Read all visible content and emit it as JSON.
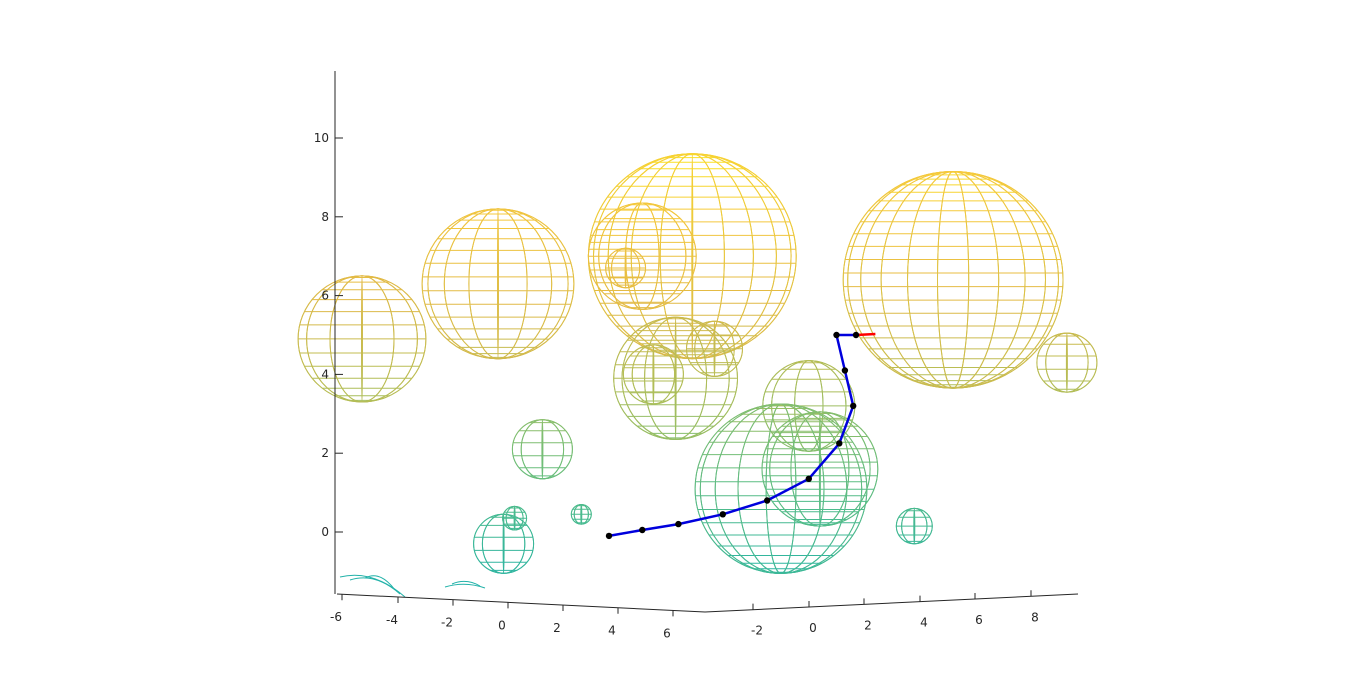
{
  "chart_data": {
    "type": "scatter",
    "title": "",
    "xlabel": "",
    "ylabel": "",
    "zlabel": "",
    "grid": false,
    "colormap": "parula",
    "z_axis": {
      "ticks": [
        "0",
        "2",
        "4",
        "6",
        "8",
        "10"
      ],
      "range": [
        -1.6,
        11.6
      ]
    },
    "x_axis": {
      "ticks": [
        "-6",
        "-4",
        "-2",
        "0",
        "2",
        "4",
        "6"
      ]
    },
    "y_axis": {
      "ticks": [
        "-2",
        "0",
        "2",
        "4",
        "6",
        "8"
      ]
    },
    "obstacles": [
      {
        "u": 3.5,
        "z": 7.0,
        "r": 2.6,
        "kind": "sphere"
      },
      {
        "u": 8.2,
        "z": 6.4,
        "r": 2.75,
        "kind": "sphere"
      },
      {
        "u": 0.0,
        "z": 6.3,
        "r": 1.9,
        "kind": "sphere"
      },
      {
        "u": 2.6,
        "z": 7.0,
        "r": 1.35,
        "kind": "sphere"
      },
      {
        "u": -2.45,
        "z": 4.9,
        "r": 1.6,
        "kind": "partial"
      },
      {
        "u": 2.3,
        "z": 6.7,
        "r": 0.5,
        "kind": "sphere"
      },
      {
        "u": 3.2,
        "z": 3.9,
        "r": 1.55,
        "kind": "sphere"
      },
      {
        "u": 3.9,
        "z": 4.65,
        "r": 0.7,
        "kind": "sphere"
      },
      {
        "u": 2.8,
        "z": 4.0,
        "r": 0.75,
        "kind": "sphere"
      },
      {
        "u": 10.25,
        "z": 4.3,
        "r": 0.75,
        "kind": "sphere"
      },
      {
        "u": 5.6,
        "z": 3.2,
        "r": 1.15,
        "kind": "sphere"
      },
      {
        "u": 5.1,
        "z": 1.1,
        "r": 2.15,
        "kind": "sphere"
      },
      {
        "u": 5.8,
        "z": 1.6,
        "r": 1.45,
        "kind": "sphere"
      },
      {
        "u": 0.8,
        "z": 2.1,
        "r": 0.75,
        "kind": "sphere"
      },
      {
        "u": 0.1,
        "z": -0.3,
        "r": 0.75,
        "kind": "sphere"
      },
      {
        "u": 0.3,
        "z": 0.35,
        "r": 0.3,
        "kind": "sphere"
      },
      {
        "u": 7.5,
        "z": 0.15,
        "r": 0.45,
        "kind": "sphere"
      },
      {
        "u": 1.5,
        "z": 0.45,
        "r": 0.25,
        "kind": "partial"
      }
    ],
    "path": {
      "color": "#0000dd",
      "waypoint_color": "#000000",
      "points": [
        {
          "u": 2.0,
          "z": -0.1
        },
        {
          "u": 2.6,
          "z": 0.05
        },
        {
          "u": 3.25,
          "z": 0.2
        },
        {
          "u": 4.05,
          "z": 0.45
        },
        {
          "u": 4.85,
          "z": 0.8
        },
        {
          "u": 5.6,
          "z": 1.35
        },
        {
          "u": 6.15,
          "z": 2.25
        },
        {
          "u": 6.4,
          "z": 3.2
        },
        {
          "u": 6.25,
          "z": 4.1
        },
        {
          "u": 6.1,
          "z": 5.0
        },
        {
          "u": 6.45,
          "z": 5.0
        }
      ]
    },
    "goal_marker": {
      "color": "#ff0000",
      "u": 6.8,
      "z": 5.0
    }
  }
}
